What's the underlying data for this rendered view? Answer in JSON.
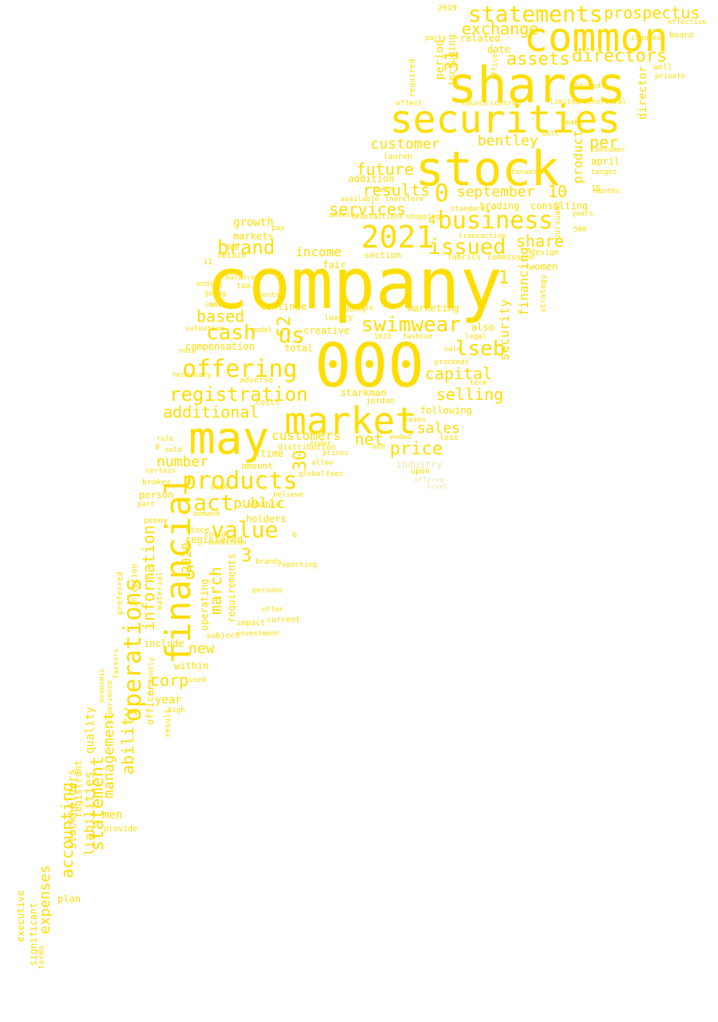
{
  "color": "#ffdd00",
  "words": [
    {
      "text": "company"
    },
    {
      "text": "000"
    },
    {
      "text": "shares"
    },
    {
      "text": "stock"
    },
    {
      "text": "common"
    },
    {
      "text": "securities"
    },
    {
      "text": "may"
    },
    {
      "text": "market"
    },
    {
      "text": "financial"
    },
    {
      "text": "2021"
    },
    {
      "text": "operations"
    },
    {
      "text": "business"
    },
    {
      "text": "issued"
    },
    {
      "text": "products"
    },
    {
      "text": "offering"
    },
    {
      "text": "statements"
    },
    {
      "text": "prospectus"
    },
    {
      "text": "swimwear"
    },
    {
      "text": "registration"
    },
    {
      "text": "value"
    },
    {
      "text": "act"
    },
    {
      "text": "brand"
    },
    {
      "text": "cash"
    },
    {
      "text": "lseb"
    },
    {
      "text": "us"
    },
    {
      "text": "directors"
    },
    {
      "text": "assets"
    },
    {
      "text": "exchange"
    },
    {
      "text": "services"
    },
    {
      "text": "results"
    },
    {
      "text": "future"
    },
    {
      "text": "customer"
    },
    {
      "text": "bentley"
    },
    {
      "text": "september"
    },
    {
      "text": "share"
    },
    {
      "text": "per"
    },
    {
      "text": "capital"
    },
    {
      "text": "selling"
    },
    {
      "text": "price"
    },
    {
      "text": "sales"
    },
    {
      "text": "net"
    },
    {
      "text": "customers"
    },
    {
      "text": "additional"
    },
    {
      "text": "number"
    },
    {
      "text": "public"
    },
    {
      "text": "march"
    },
    {
      "text": "information"
    },
    {
      "text": "ability"
    },
    {
      "text": "statement"
    },
    {
      "text": "management"
    },
    {
      "text": "liabilities"
    },
    {
      "text": "accounting"
    },
    {
      "text": "expenses"
    },
    {
      "text": "corp"
    },
    {
      "text": "new"
    },
    {
      "text": "year"
    },
    {
      "text": "based"
    },
    {
      "text": "income"
    },
    {
      "text": "growth"
    },
    {
      "text": "markets"
    },
    {
      "text": "compensation"
    },
    {
      "text": "continue"
    },
    {
      "text": "total"
    },
    {
      "text": "creative"
    },
    {
      "text": "marketing"
    },
    {
      "text": "security"
    },
    {
      "text": "financing"
    },
    {
      "text": "product"
    },
    {
      "text": "director"
    },
    {
      "text": "consulting"
    },
    {
      "text": "trading"
    },
    {
      "text": "april"
    },
    {
      "text": "women"
    },
    {
      "text": "design"
    },
    {
      "text": "also"
    },
    {
      "text": "fair"
    },
    {
      "text": "section"
    },
    {
      "text": "fabrics"
    },
    {
      "text": "commission"
    },
    {
      "text": "transaction"
    },
    {
      "text": "including"
    },
    {
      "text": "period"
    },
    {
      "text": "related"
    },
    {
      "text": "date"
    },
    {
      "text": "2019"
    },
    {
      "text": "board"
    },
    {
      "text": "private"
    },
    {
      "text": "well"
    },
    {
      "text": "launch"
    },
    {
      "text": "control"
    },
    {
      "text": "required"
    },
    {
      "text": "lauren"
    },
    {
      "text": "addition"
    },
    {
      "text": "starkman"
    },
    {
      "text": "jordan"
    },
    {
      "text": "following"
    },
    {
      "text": "industry"
    },
    {
      "text": "upon"
    },
    {
      "text": "loss"
    },
    {
      "text": "one"
    },
    {
      "text": "time"
    },
    {
      "text": "holders"
    },
    {
      "text": "unable"
    },
    {
      "text": "registered"
    },
    {
      "text": "person"
    },
    {
      "text": "broker"
    },
    {
      "text": "amount"
    },
    {
      "text": "certain"
    },
    {
      "text": "operating"
    },
    {
      "text": "requirements"
    },
    {
      "text": "include"
    },
    {
      "text": "subject"
    },
    {
      "text": "within"
    },
    {
      "text": "impact"
    },
    {
      "text": "high"
    },
    {
      "text": "officers"
    },
    {
      "text": "quality"
    },
    {
      "text": "men"
    },
    {
      "text": "stockholders"
    },
    {
      "text": "registrant"
    },
    {
      "text": "executive"
    },
    {
      "text": "significant"
    },
    {
      "text": "terms"
    },
    {
      "text": "plan"
    },
    {
      "text": "provide"
    },
    {
      "text": "obtain"
    },
    {
      "text": "due"
    },
    {
      "text": "tax"
    },
    {
      "text": "balance"
    },
    {
      "text": "going"
    },
    {
      "text": "increase"
    },
    {
      "text": "note"
    },
    {
      "text": "necessary"
    },
    {
      "text": "adverse"
    },
    {
      "text": "costs"
    },
    {
      "text": "distribution"
    },
    {
      "text": "order"
    },
    {
      "text": "prices"
    },
    {
      "text": "allow"
    },
    {
      "text": "fees"
    },
    {
      "text": "believe"
    },
    {
      "text": "legal"
    },
    {
      "text": "term"
    },
    {
      "text": "proceeds"
    },
    {
      "text": "sale"
    },
    {
      "text": "pursuant"
    },
    {
      "text": "strategy"
    },
    {
      "text": "fashion"
    },
    {
      "text": "1933"
    },
    {
      "text": "equity"
    },
    {
      "text": "able"
    },
    {
      "text": "luxury"
    },
    {
      "text": "available"
    },
    {
      "text": "therefore"
    },
    {
      "text": "use"
    },
    {
      "text": "months"
    },
    {
      "text": "target"
    },
    {
      "text": "years"
    },
    {
      "text": "500"
    },
    {
      "text": "2020"
    },
    {
      "text": "covid"
    },
    {
      "text": "penny"
    },
    {
      "text": "rule"
    },
    {
      "text": "sold"
    },
    {
      "text": "part"
    },
    {
      "text": "since"
    },
    {
      "text": "condition"
    },
    {
      "text": "material"
    },
    {
      "text": "preferred"
    },
    {
      "text": "inception"
    },
    {
      "text": "demand"
    },
    {
      "text": "page"
    },
    {
      "text": "used"
    },
    {
      "text": "result"
    },
    {
      "text": "current"
    },
    {
      "text": "offer"
    },
    {
      "text": "reporting"
    },
    {
      "text": "investment"
    },
    {
      "text": "sell"
    },
    {
      "text": "make"
    },
    {
      "text": "limited"
    },
    {
      "text": "effect"
    },
    {
      "text": "officer"
    },
    {
      "text": "beneficial"
    },
    {
      "text": "party"
    },
    {
      "text": "0"
    },
    {
      "text": "1"
    },
    {
      "text": "3"
    },
    {
      "text": "4"
    },
    {
      "text": "5"
    },
    {
      "text": "6"
    },
    {
      "text": "8"
    },
    {
      "text": "10"
    },
    {
      "text": "11"
    },
    {
      "text": "15"
    },
    {
      "text": "30"
    },
    {
      "text": "31"
    },
    {
      "text": "52"
    },
    {
      "text": "economic"
    },
    {
      "text": "factors"
    },
    {
      "text": "currently"
    },
    {
      "text": "experience"
    },
    {
      "text": "ended"
    },
    {
      "text": "taxes"
    },
    {
      "text": "consumer"
    },
    {
      "text": "effective"
    },
    {
      "text": "changes"
    },
    {
      "text": "forward"
    },
    {
      "text": "forth"
    },
    {
      "text": "develop"
    },
    {
      "text": "transactions"
    },
    {
      "text": "events"
    },
    {
      "text": "offered"
    },
    {
      "text": "level"
    },
    {
      "text": "global"
    },
    {
      "text": "ending"
    },
    {
      "text": "valuation"
    },
    {
      "text": "model"
    },
    {
      "text": "limited"
    },
    {
      "text": "shopping"
    },
    {
      "text": "standards"
    },
    {
      "text": "persons"
    },
    {
      "text": "brands"
    },
    {
      "text": "pay"
    }
  ]
}
